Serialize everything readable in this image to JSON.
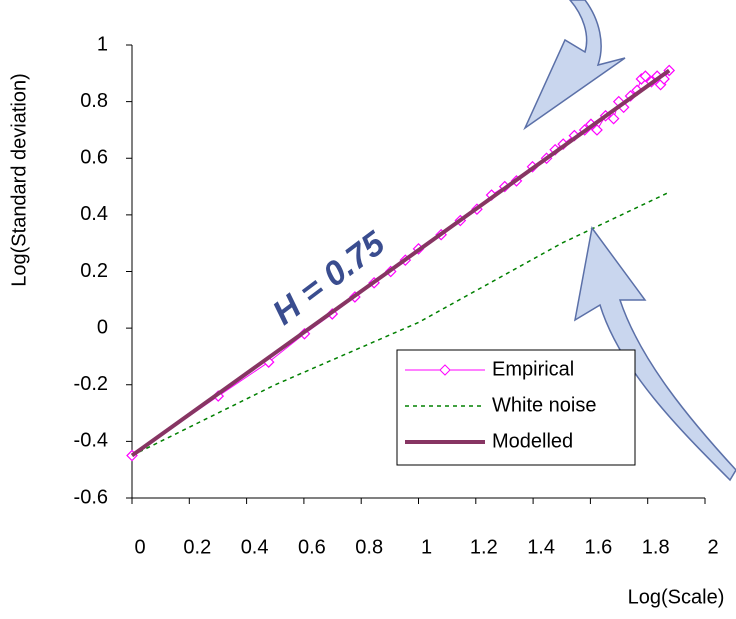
{
  "chart_data": {
    "type": "line",
    "xlabel": "Log(Scale)",
    "ylabel": "Log(Standard deviation)",
    "annotation": "H = 0.75",
    "xlim": [
      0,
      2
    ],
    "xticks": [
      0,
      0.2,
      0.4,
      0.6,
      0.8,
      1,
      1.2,
      1.4,
      1.6,
      1.8,
      2
    ],
    "ylim": [
      -0.6,
      1
    ],
    "yticks": [
      -0.6,
      -0.4,
      -0.2,
      0,
      0.2,
      0.4,
      0.6,
      0.8,
      1
    ],
    "legend": "lower-right",
    "series": [
      {
        "name": "Empirical",
        "color": "#ff00ff",
        "marker": "diamond",
        "style": "solid",
        "width": 1,
        "x": [
          0,
          0.301,
          0.477,
          0.602,
          0.699,
          0.778,
          0.845,
          0.903,
          0.954,
          1,
          1.079,
          1.146,
          1.204,
          1.255,
          1.301,
          1.342,
          1.398,
          1.447,
          1.477,
          1.505,
          1.544,
          1.58,
          1.602,
          1.623,
          1.653,
          1.681,
          1.699,
          1.716,
          1.74,
          1.763,
          1.778,
          1.792,
          1.813,
          1.833,
          1.845,
          1.857,
          1.875
        ],
        "values": [
          -0.45,
          -0.24,
          -0.12,
          -0.02,
          0.05,
          0.11,
          0.16,
          0.2,
          0.24,
          0.28,
          0.33,
          0.38,
          0.42,
          0.47,
          0.5,
          0.52,
          0.57,
          0.6,
          0.63,
          0.65,
          0.68,
          0.7,
          0.72,
          0.7,
          0.75,
          0.74,
          0.8,
          0.78,
          0.82,
          0.84,
          0.88,
          0.89,
          0.87,
          0.89,
          0.86,
          0.88,
          0.91
        ]
      },
      {
        "name": "White noise",
        "color": "#008000",
        "style": "dotted",
        "width": 1.5,
        "x": [
          0,
          0.5,
          1,
          1.5,
          1.875
        ],
        "values": [
          -0.45,
          -0.2,
          0.02,
          0.3,
          0.48
        ]
      },
      {
        "name": "Modelled",
        "color": "#873563",
        "style": "solid",
        "width": 4,
        "x": [
          0,
          1.875
        ],
        "values": [
          -0.45,
          0.91
        ]
      }
    ]
  }
}
